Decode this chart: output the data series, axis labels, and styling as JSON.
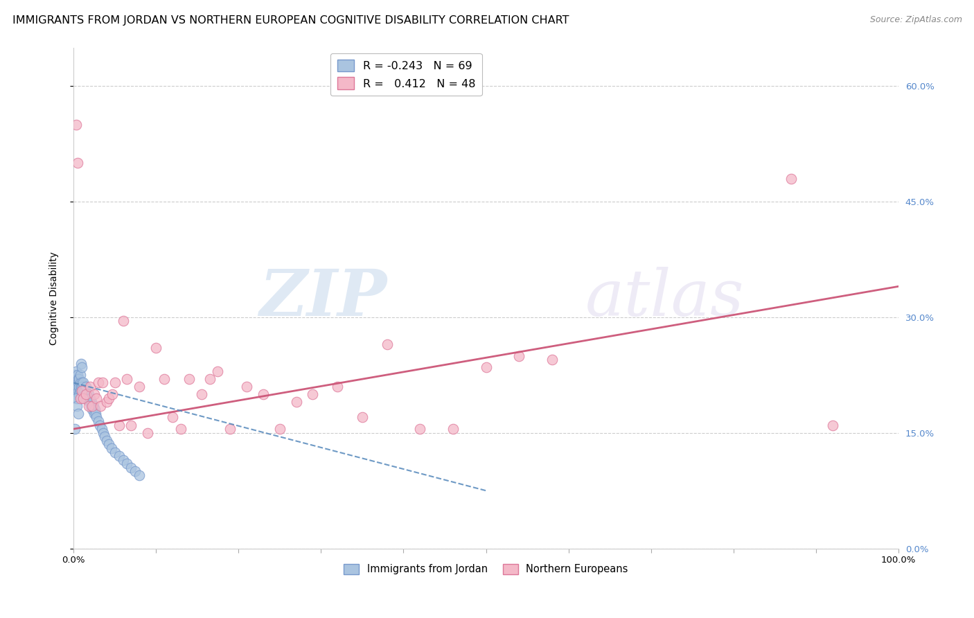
{
  "title": "IMMIGRANTS FROM JORDAN VS NORTHERN EUROPEAN COGNITIVE DISABILITY CORRELATION CHART",
  "source": "Source: ZipAtlas.com",
  "ylabel": "Cognitive Disability",
  "xlim": [
    0,
    1.0
  ],
  "ylim": [
    0,
    0.65
  ],
  "x_ticks": [
    0.0,
    0.1,
    0.2,
    0.3,
    0.4,
    0.5,
    0.6,
    0.7,
    0.8,
    0.9,
    1.0
  ],
  "x_tick_labels": [
    "0.0%",
    "",
    "",
    "",
    "",
    "",
    "",
    "",
    "",
    "",
    "100.0%"
  ],
  "y_ticks": [
    0.0,
    0.15,
    0.3,
    0.45,
    0.6
  ],
  "y_tick_labels_right": [
    "0.0%",
    "15.0%",
    "30.0%",
    "45.0%",
    "60.0%"
  ],
  "blue_R": "-0.243",
  "blue_N": "69",
  "pink_R": "0.412",
  "pink_N": "48",
  "legend_label_blue": "Immigrants from Jordan",
  "legend_label_pink": "Northern Europeans",
  "watermark_zip": "ZIP",
  "watermark_atlas": "atlas",
  "blue_scatter_x": [
    0.001,
    0.002,
    0.002,
    0.002,
    0.003,
    0.003,
    0.003,
    0.004,
    0.004,
    0.004,
    0.005,
    0.005,
    0.005,
    0.006,
    0.006,
    0.006,
    0.007,
    0.007,
    0.007,
    0.008,
    0.008,
    0.008,
    0.009,
    0.009,
    0.01,
    0.01,
    0.011,
    0.011,
    0.012,
    0.012,
    0.013,
    0.013,
    0.014,
    0.015,
    0.015,
    0.016,
    0.017,
    0.018,
    0.019,
    0.02,
    0.021,
    0.022,
    0.023,
    0.024,
    0.025,
    0.026,
    0.027,
    0.028,
    0.03,
    0.032,
    0.034,
    0.036,
    0.038,
    0.04,
    0.043,
    0.046,
    0.05,
    0.055,
    0.06,
    0.065,
    0.07,
    0.075,
    0.08,
    0.009,
    0.01,
    0.003,
    0.004,
    0.002,
    0.006
  ],
  "blue_scatter_y": [
    0.215,
    0.22,
    0.205,
    0.225,
    0.21,
    0.2,
    0.23,
    0.215,
    0.205,
    0.22,
    0.225,
    0.21,
    0.195,
    0.22,
    0.205,
    0.215,
    0.21,
    0.22,
    0.2,
    0.215,
    0.205,
    0.225,
    0.195,
    0.21,
    0.205,
    0.215,
    0.21,
    0.2,
    0.205,
    0.215,
    0.195,
    0.205,
    0.2,
    0.195,
    0.21,
    0.2,
    0.195,
    0.2,
    0.19,
    0.195,
    0.185,
    0.19,
    0.18,
    0.185,
    0.175,
    0.18,
    0.175,
    0.17,
    0.165,
    0.16,
    0.155,
    0.15,
    0.145,
    0.14,
    0.135,
    0.13,
    0.125,
    0.12,
    0.115,
    0.11,
    0.105,
    0.1,
    0.095,
    0.24,
    0.235,
    0.195,
    0.185,
    0.155,
    0.175
  ],
  "pink_scatter_x": [
    0.003,
    0.005,
    0.008,
    0.01,
    0.012,
    0.015,
    0.018,
    0.02,
    0.023,
    0.025,
    0.028,
    0.03,
    0.033,
    0.035,
    0.04,
    0.043,
    0.047,
    0.05,
    0.055,
    0.06,
    0.065,
    0.07,
    0.08,
    0.09,
    0.1,
    0.11,
    0.12,
    0.13,
    0.14,
    0.155,
    0.165,
    0.175,
    0.19,
    0.21,
    0.23,
    0.25,
    0.27,
    0.29,
    0.32,
    0.35,
    0.38,
    0.42,
    0.46,
    0.5,
    0.54,
    0.58,
    0.87,
    0.92
  ],
  "pink_scatter_y": [
    0.55,
    0.5,
    0.195,
    0.205,
    0.195,
    0.2,
    0.185,
    0.21,
    0.185,
    0.2,
    0.195,
    0.215,
    0.185,
    0.215,
    0.19,
    0.195,
    0.2,
    0.215,
    0.16,
    0.295,
    0.22,
    0.16,
    0.21,
    0.15,
    0.26,
    0.22,
    0.17,
    0.155,
    0.22,
    0.2,
    0.22,
    0.23,
    0.155,
    0.21,
    0.2,
    0.155,
    0.19,
    0.2,
    0.21,
    0.17,
    0.265,
    0.155,
    0.155,
    0.235,
    0.25,
    0.245,
    0.48,
    0.16
  ],
  "blue_line_color": "#5588bb",
  "pink_line_color": "#cc5577",
  "blue_scatter_facecolor": "#aac4e0",
  "blue_scatter_edgecolor": "#7799cc",
  "pink_scatter_facecolor": "#f4b8c8",
  "pink_scatter_edgecolor": "#dd7799",
  "grid_color": "#cccccc",
  "background_color": "#ffffff",
  "title_fontsize": 11.5,
  "axis_label_fontsize": 10,
  "tick_fontsize": 9.5,
  "right_tick_color": "#5588cc",
  "blue_line_intercept": 0.215,
  "blue_line_slope": -0.28,
  "pink_line_intercept": 0.155,
  "pink_line_slope": 0.185
}
